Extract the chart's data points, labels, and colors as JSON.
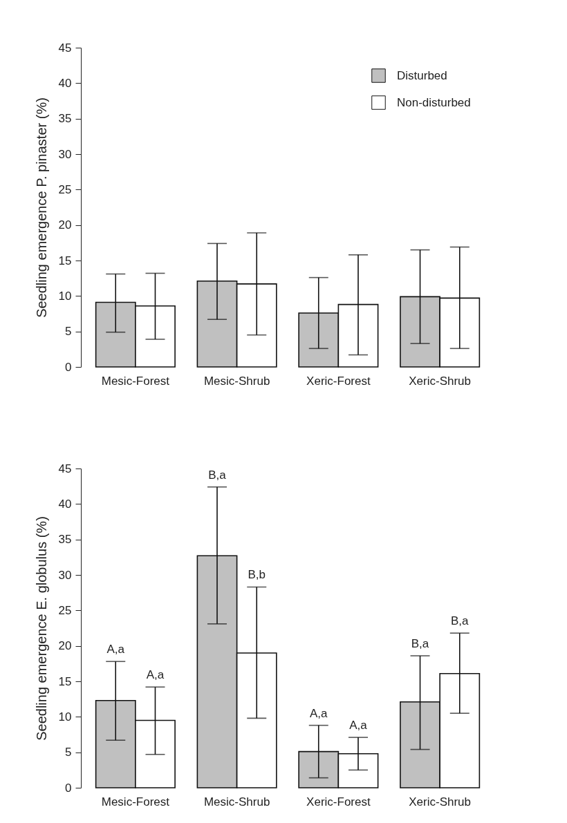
{
  "chart_data": [
    {
      "type": "bar",
      "ylabel": "Seedling emergence P. pinaster (%)",
      "categories": [
        "Mesic-Forest",
        "Mesic-Shrub",
        "Xeric-Forest",
        "Xeric-Shrub"
      ],
      "ylim": [
        0,
        45
      ],
      "yticks": [
        0,
        5,
        10,
        15,
        20,
        25,
        30,
        35,
        40,
        45
      ],
      "legend": "top right",
      "series": [
        {
          "name": "Disturbed",
          "color": "#c0c0c0",
          "values": [
            9.1,
            12.1,
            7.6,
            9.9
          ],
          "errors": [
            [
              4.9,
              13.1
            ],
            [
              6.7,
              17.4
            ],
            [
              2.6,
              12.6
            ],
            [
              3.3,
              16.5
            ]
          ]
        },
        {
          "name": "Non-disturbed",
          "color": "#ffffff",
          "values": [
            8.6,
            11.7,
            8.8,
            9.7
          ],
          "errors": [
            [
              3.9,
              13.2
            ],
            [
              4.5,
              18.9
            ],
            [
              1.7,
              15.8
            ],
            [
              2.6,
              16.9
            ]
          ]
        }
      ]
    },
    {
      "type": "bar",
      "ylabel": "Seedling emergence E. globulus (%)",
      "categories": [
        "Mesic-Forest",
        "Mesic-Shrub",
        "Xeric-Forest",
        "Xeric-Shrub"
      ],
      "ylim": [
        0,
        45
      ],
      "yticks": [
        0,
        5,
        10,
        15,
        20,
        25,
        30,
        35,
        40,
        45
      ],
      "series": [
        {
          "color": "#c0c0c0",
          "values": [
            12.3,
            32.7,
            5.1,
            12.1
          ],
          "errors": [
            [
              6.7,
              17.8
            ],
            [
              23.1,
              42.4
            ],
            [
              1.4,
              8.8
            ],
            [
              5.4,
              18.6
            ]
          ]
        },
        {
          "color": "#ffffff",
          "values": [
            9.5,
            19.0,
            4.8,
            16.1
          ],
          "errors": [
            [
              4.7,
              14.2
            ],
            [
              9.8,
              28.3
            ],
            [
              2.5,
              7.1
            ],
            [
              10.5,
              21.8
            ]
          ]
        }
      ],
      "annotations": [
        "A,a",
        "A,a",
        "B,a",
        "B,b",
        "A,a",
        "A,a",
        "B,a",
        "B,a"
      ]
    }
  ]
}
